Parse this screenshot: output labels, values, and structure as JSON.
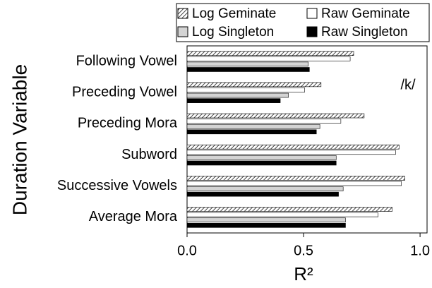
{
  "chart_data": {
    "type": "hbar",
    "categories": [
      "Following Vowel",
      "Preceding Vowel",
      "Preceding Mora",
      "Subword",
      "Successive Vowels",
      "Average Mora"
    ],
    "series": [
      {
        "name": "Log Geminate",
        "color": "#555555",
        "hatch": true,
        "values": [
          0.715,
          0.575,
          0.76,
          0.91,
          0.935,
          0.88
        ]
      },
      {
        "name": "Raw Geminate",
        "color": "#ffffff",
        "values": [
          0.7,
          0.505,
          0.66,
          0.895,
          0.92,
          0.82
        ]
      },
      {
        "name": "Log Singleton",
        "color": "#d4d4d4",
        "values": [
          0.52,
          0.435,
          0.57,
          0.64,
          0.67,
          0.68
        ]
      },
      {
        "name": "Raw Singleton",
        "color": "#000000",
        "values": [
          0.525,
          0.4,
          0.555,
          0.64,
          0.65,
          0.68
        ]
      }
    ],
    "xlabel": "R²",
    "ylabel": "Duration Variable",
    "annotation": "/k/",
    "xlim": [
      0,
      1.03
    ],
    "xticks": [
      {
        "value": 0,
        "label": "0.0"
      },
      0.5,
      {
        "value": 1,
        "label": "1.0"
      }
    ],
    "legend": "top-right"
  }
}
